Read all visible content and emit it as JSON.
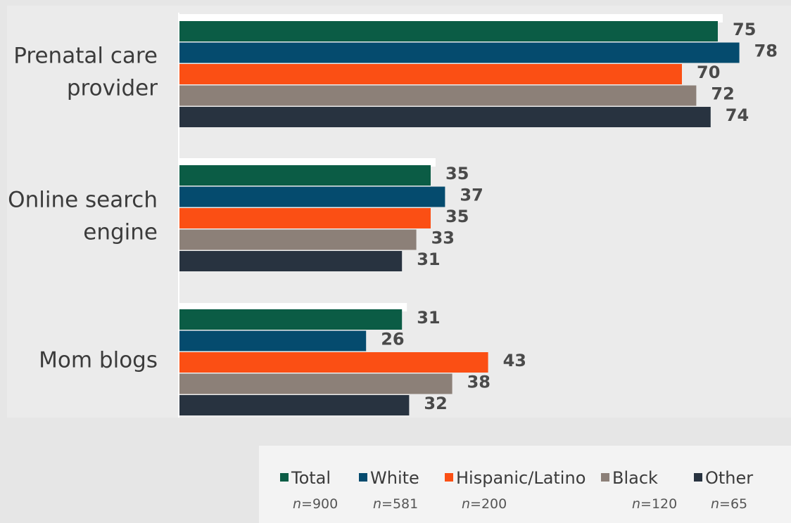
{
  "chart_data": {
    "type": "bar",
    "orientation": "horizontal",
    "categories": [
      "Prenatal care\nprovider",
      "Online search\nengine",
      "Mom blogs"
    ],
    "series": [
      {
        "name": "Total",
        "n": "n=900",
        "color": "#0b5c45",
        "values": [
          75,
          35,
          31
        ]
      },
      {
        "name": "White",
        "n": "n=581",
        "color": "#054b6e",
        "values": [
          78,
          37,
          26
        ]
      },
      {
        "name": "Hispanic/Latino",
        "n": "n=200",
        "color": "#fb4f14",
        "values": [
          70,
          35,
          43
        ]
      },
      {
        "name": "Black",
        "n": "n=120",
        "color": "#8c8078",
        "values": [
          72,
          33,
          38
        ]
      },
      {
        "name": "Other",
        "n": "n=65",
        "color": "#283340",
        "values": [
          74,
          31,
          32
        ]
      }
    ],
    "grid": false,
    "legend_position": "bottom-right",
    "title": "",
    "xlabel": "",
    "ylabel": ""
  }
}
